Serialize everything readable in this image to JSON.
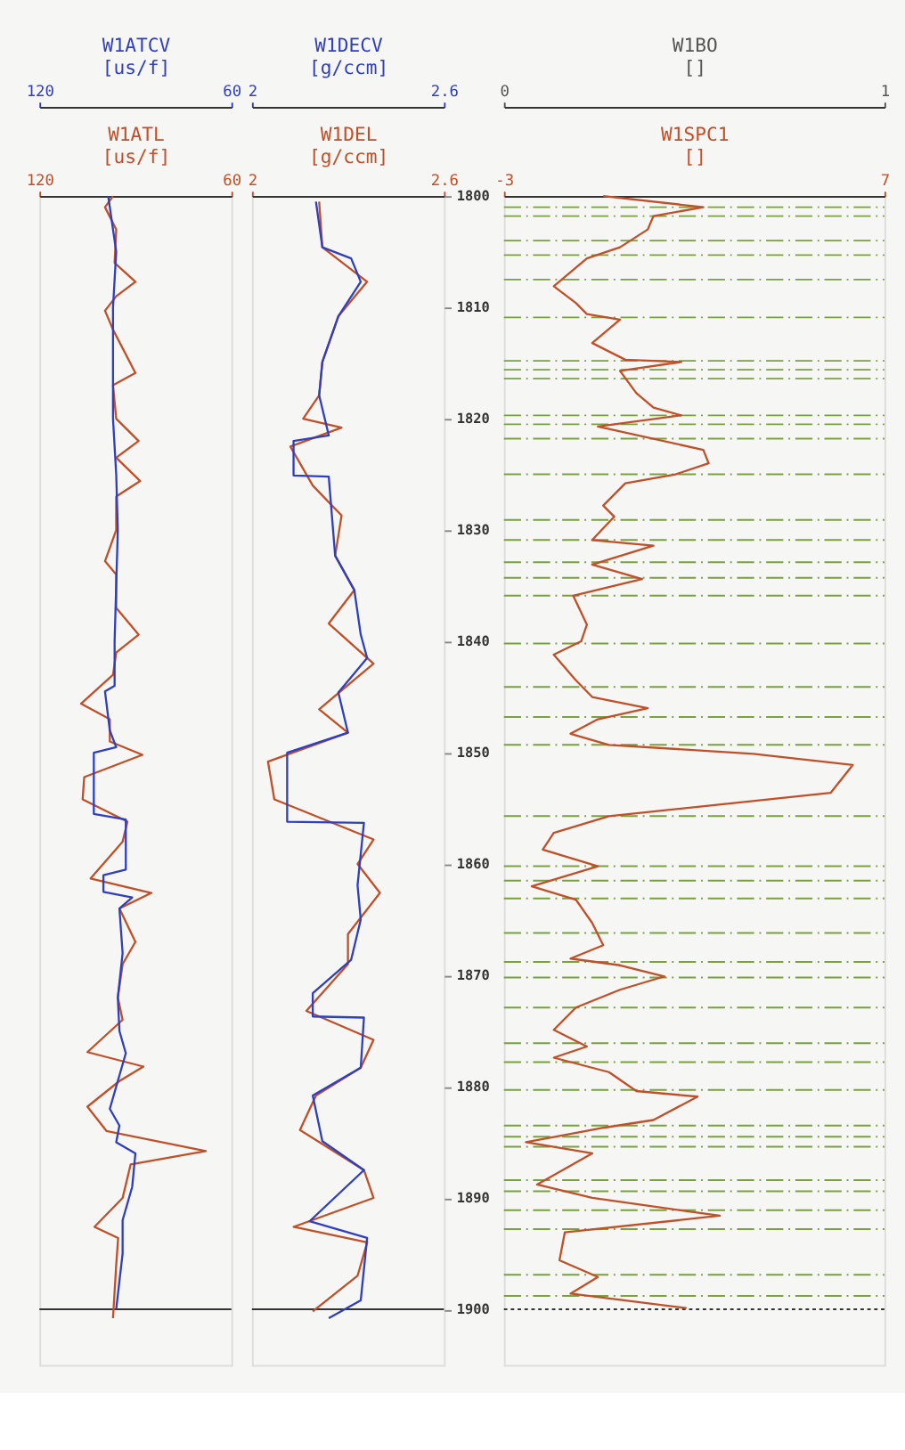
{
  "chart_data": [
    {
      "type": "line",
      "orientation": "horizontal",
      "xlim": [
        120,
        60
      ],
      "xticks": [
        120,
        60
      ],
      "xlabel": "W1ATL\n[us/f]",
      "x2lim": [
        120,
        60
      ],
      "x2ticks": [
        120,
        60
      ],
      "x2label": "W1ATCV\n[us/f]",
      "ylim": [
        1905,
        1800
      ],
      "tick_labels": "x",
      "grid": false,
      "ref_lines": [
        {
          "axis": "y",
          "value": 1900,
          "color": "#333333"
        }
      ],
      "series": [
        {
          "axis": "x2",
          "color": "#2f3fbf",
          "x": [
            1800,
            1805,
            1810,
            1815,
            1820,
            1825,
            1830,
            1835,
            1840,
            1844,
            1844.5,
            1848,
            1849.5,
            1850,
            1855.5,
            1856,
            1860.5,
            1861,
            1862.5,
            1863,
            1864,
            1868,
            1872,
            1875,
            1877,
            1880,
            1882,
            1883.5,
            1885,
            1886,
            1889,
            1892,
            1895,
            1900
          ],
          "values": [
            98.5,
            96,
            97,
            97,
            97,
            96,
            95.5,
            96,
            96.5,
            96.5,
            99.5,
            98,
            96,
            103,
            103,
            93,
            93,
            100,
            100,
            91,
            95,
            94,
            95.5,
            95,
            93,
            96,
            98,
            95,
            96,
            90,
            91,
            94,
            94,
            96
          ]
        },
        {
          "color": "#c0502a",
          "x": [
            1800,
            1801,
            1803,
            1806,
            1807.7,
            1809,
            1810.3,
            1812,
            1815.9,
            1817,
            1820,
            1822,
            1823.5,
            1825.6,
            1827,
            1830,
            1832.8,
            1834,
            1837,
            1839.4,
            1841,
            1843,
            1845.6,
            1847,
            1849,
            1850.2,
            1852.2,
            1854.2,
            1856.2,
            1858,
            1861.3,
            1862.6,
            1864,
            1867,
            1869,
            1872,
            1874,
            1876.9,
            1878.2,
            1879.5,
            1881.8,
            1884,
            1885.8,
            1887,
            1890,
            1892.6,
            1893.6,
            1896,
            1900.8
          ],
          "values": [
            97,
            99.5,
            96,
            96.5,
            90,
            96,
            99.5,
            97,
            90,
            97,
            96,
            89,
            96,
            88.5,
            96,
            96,
            99.5,
            96,
            96,
            89,
            96,
            97,
            107,
            98,
            98,
            87.8,
            106,
            106.5,
            92.5,
            94,
            104,
            85,
            95,
            90,
            94,
            95.5,
            94,
            105,
            87.5,
            95,
            105,
            99,
            68,
            91.5,
            94,
            102.8,
            95.4,
            96,
            97
          ]
        }
      ]
    },
    {
      "type": "line",
      "orientation": "horizontal",
      "xlim": [
        2,
        2.6
      ],
      "xticks": [
        2,
        2.6
      ],
      "xlabel": "W1DEL\n[g/ccm]",
      "x2lim": [
        2,
        2.6
      ],
      "x2ticks": [
        2,
        2.6
      ],
      "x2label": "W1DECV\n[g/ccm]",
      "ylim": [
        1905,
        1800
      ],
      "yticks": [
        1800,
        1810,
        1820,
        1830,
        1840,
        1850,
        1860,
        1870,
        1880,
        1890,
        1900
      ],
      "grid": false,
      "ref_lines": [
        {
          "axis": "y",
          "value": 1900,
          "color": "#333333"
        }
      ],
      "series": [
        {
          "axis": "x2",
          "color": "#2f3fbf",
          "x": [
            1800.5,
            1804.6,
            1805.6,
            1807.7,
            1810.8,
            1814.9,
            1817.9,
            1821.5,
            1822,
            1825.1,
            1825.2,
            1832.3,
            1835.4,
            1839.4,
            1841.5,
            1844.6,
            1848.2,
            1850,
            1856.2,
            1856.3,
            1861.9,
            1865,
            1868.6,
            1871.6,
            1873.7,
            1873.8,
            1878.3,
            1880.8,
            1884.9,
            1887.5,
            1892.1,
            1893.6,
            1899.2,
            1900.8
          ],
          "values": [
            2.2,
            2.22,
            2.31,
            2.34,
            2.27,
            2.22,
            2.21,
            2.24,
            2.13,
            2.13,
            2.24,
            2.26,
            2.32,
            2.34,
            2.36,
            2.27,
            2.3,
            2.11,
            2.11,
            2.35,
            2.33,
            2.34,
            2.31,
            2.19,
            2.19,
            2.35,
            2.34,
            2.19,
            2.22,
            2.35,
            2.18,
            2.36,
            2.34,
            2.24
          ]
        },
        {
          "color": "#c0502a",
          "x": [
            1800.5,
            1804.6,
            1807.7,
            1810.8,
            1814.9,
            1817.9,
            1820,
            1820.8,
            1822.5,
            1826,
            1828.7,
            1832.3,
            1835.4,
            1838.4,
            1842,
            1846.1,
            1848.2,
            1850.8,
            1854.2,
            1857.8,
            1860,
            1862.6,
            1866.3,
            1869,
            1873.2,
            1875.8,
            1878.3,
            1880.8,
            1883.9,
            1887.5,
            1890,
            1892.6,
            1894,
            1897,
            1900.2
          ],
          "values": [
            2.21,
            2.22,
            2.36,
            2.27,
            2.22,
            2.21,
            2.16,
            2.28,
            2.12,
            2.19,
            2.28,
            2.26,
            2.32,
            2.24,
            2.38,
            2.21,
            2.3,
            2.05,
            2.07,
            2.38,
            2.33,
            2.4,
            2.3,
            2.3,
            2.17,
            2.38,
            2.34,
            2.2,
            2.15,
            2.35,
            2.38,
            2.13,
            2.36,
            2.33,
            2.19
          ]
        }
      ]
    },
    {
      "type": "line",
      "orientation": "horizontal",
      "xlim": [
        -3,
        7
      ],
      "xticks": [
        -3,
        7
      ],
      "xlabel": "W1SPC1\n[]",
      "x2lim": [
        0,
        1
      ],
      "x2ticks": [
        0,
        1
      ],
      "x2label": "W1BO\n[]",
      "ylim": [
        1905,
        1800
      ],
      "tick_labels": "x",
      "grid": false,
      "ref_lines": [
        {
          "axis": "y",
          "value": 1900,
          "color": "#333333",
          "line_style": "dotted"
        },
        {
          "axis": "y",
          "value": 1801.0,
          "color": "#7aa040",
          "line_style": "dashed"
        },
        {
          "axis": "y",
          "value": 1801.8,
          "color": "#7aa040",
          "line_style": "dashed"
        },
        {
          "axis": "y",
          "value": 1804.0,
          "color": "#7aa040",
          "line_style": "dashed"
        },
        {
          "axis": "y",
          "value": 1805.3,
          "color": "#7aa040",
          "line_style": "dashed"
        },
        {
          "axis": "y",
          "value": 1807.5,
          "color": "#7aa040",
          "line_style": "dashed"
        },
        {
          "axis": "y",
          "value": 1810.9,
          "color": "#7aa040",
          "line_style": "dashed"
        },
        {
          "axis": "y",
          "value": 1814.8,
          "color": "#7aa040",
          "line_style": "dashed"
        },
        {
          "axis": "y",
          "value": 1815.6,
          "color": "#7aa040",
          "line_style": "dashed"
        },
        {
          "axis": "y",
          "value": 1816.4,
          "color": "#7aa040",
          "line_style": "dashed"
        },
        {
          "axis": "y",
          "value": 1819.7,
          "color": "#7aa040",
          "line_style": "dashed"
        },
        {
          "axis": "y",
          "value": 1820.5,
          "color": "#7aa040",
          "line_style": "dashed"
        },
        {
          "axis": "y",
          "value": 1821.8,
          "color": "#7aa040",
          "line_style": "dashed"
        },
        {
          "axis": "y",
          "value": 1825.0,
          "color": "#7aa040",
          "line_style": "dashed"
        },
        {
          "axis": "y",
          "value": 1829.1,
          "color": "#7aa040",
          "line_style": "dashed"
        },
        {
          "axis": "y",
          "value": 1830.9,
          "color": "#7aa040",
          "line_style": "dashed"
        },
        {
          "axis": "y",
          "value": 1832.9,
          "color": "#7aa040",
          "line_style": "dashed"
        },
        {
          "axis": "y",
          "value": 1834.3,
          "color": "#7aa040",
          "line_style": "dashed"
        },
        {
          "axis": "y",
          "value": 1835.9,
          "color": "#7aa040",
          "line_style": "dashed"
        },
        {
          "axis": "y",
          "value": 1840.2,
          "color": "#7aa040",
          "line_style": "dashed"
        },
        {
          "axis": "y",
          "value": 1844.1,
          "color": "#7aa040",
          "line_style": "dashed"
        },
        {
          "axis": "y",
          "value": 1846.8,
          "color": "#7aa040",
          "line_style": "dashed"
        },
        {
          "axis": "y",
          "value": 1849.3,
          "color": "#7aa040",
          "line_style": "dashed"
        },
        {
          "axis": "y",
          "value": 1855.7,
          "color": "#7aa040",
          "line_style": "dashed"
        },
        {
          "axis": "y",
          "value": 1860.2,
          "color": "#7aa040",
          "line_style": "dashed"
        },
        {
          "axis": "y",
          "value": 1861.5,
          "color": "#7aa040",
          "line_style": "dashed"
        },
        {
          "axis": "y",
          "value": 1863.1,
          "color": "#7aa040",
          "line_style": "dashed"
        },
        {
          "axis": "y",
          "value": 1866.2,
          "color": "#7aa040",
          "line_style": "dashed"
        },
        {
          "axis": "y",
          "value": 1868.8,
          "color": "#7aa040",
          "line_style": "dashed"
        },
        {
          "axis": "y",
          "value": 1870.2,
          "color": "#7aa040",
          "line_style": "dashed"
        },
        {
          "axis": "y",
          "value": 1872.9,
          "color": "#7aa040",
          "line_style": "dashed"
        },
        {
          "axis": "y",
          "value": 1876.1,
          "color": "#7aa040",
          "line_style": "dashed"
        },
        {
          "axis": "y",
          "value": 1877.8,
          "color": "#7aa040",
          "line_style": "dashed"
        },
        {
          "axis": "y",
          "value": 1880.3,
          "color": "#7aa040",
          "line_style": "dashed"
        },
        {
          "axis": "y",
          "value": 1883.5,
          "color": "#7aa040",
          "line_style": "dashed"
        },
        {
          "axis": "y",
          "value": 1884.5,
          "color": "#7aa040",
          "line_style": "dashed"
        },
        {
          "axis": "y",
          "value": 1885.4,
          "color": "#7aa040",
          "line_style": "dashed"
        },
        {
          "axis": "y",
          "value": 1888.4,
          "color": "#7aa040",
          "line_style": "dashed"
        },
        {
          "axis": "y",
          "value": 1889.4,
          "color": "#7aa040",
          "line_style": "dashed"
        },
        {
          "axis": "y",
          "value": 1891.1,
          "color": "#7aa040",
          "line_style": "dashed"
        },
        {
          "axis": "y",
          "value": 1892.8,
          "color": "#7aa040",
          "line_style": "dashed"
        },
        {
          "axis": "y",
          "value": 1896.9,
          "color": "#7aa040",
          "line_style": "dashed"
        },
        {
          "axis": "y",
          "value": 1898.8,
          "color": "#7aa040",
          "line_style": "dashed"
        }
      ],
      "series": [
        {
          "color": "#c0502a",
          "x": [
            1800,
            1801.0,
            1801.8,
            1803.0,
            1804.6,
            1805.6,
            1808.1,
            1809.6,
            1810.6,
            1811.1,
            1813.2,
            1814.7,
            1814.9,
            1815.7,
            1817.7,
            1819.0,
            1819.7,
            1820.7,
            1822.8,
            1824.0,
            1825.0,
            1825.8,
            1827.8,
            1828.8,
            1830.9,
            1831.4,
            1833.1,
            1834.4,
            1835.9,
            1838.5,
            1840.0,
            1841.2,
            1843.5,
            1845.0,
            1846.0,
            1847.0,
            1848.3,
            1849.3,
            1850.1,
            1851.1,
            1853.6,
            1854.6,
            1855.7,
            1857.2,
            1858.7,
            1860.2,
            1862.0,
            1863.2,
            1865.3,
            1867.3,
            1868.5,
            1869.1,
            1870.1,
            1871.3,
            1872.9,
            1874.9,
            1876.4,
            1877.4,
            1878.7,
            1880.4,
            1880.9,
            1883.0,
            1883.7,
            1885.0,
            1886.0,
            1888.8,
            1890.0,
            1891.6,
            1893.1,
            1895.6,
            1897.1,
            1898.6,
            1899.9
          ],
          "values": [
            -0.39,
            2.24,
            0.93,
            0.78,
            0.05,
            -0.82,
            -1.69,
            -1.11,
            -0.82,
            0.05,
            -0.68,
            0.19,
            1.66,
            0.05,
            0.48,
            0.93,
            1.66,
            -0.53,
            2.24,
            2.38,
            1.51,
            0.19,
            -0.39,
            -0.1,
            -0.68,
            0.93,
            -0.68,
            0.63,
            -1.18,
            -0.82,
            -0.97,
            -1.69,
            -1.11,
            -0.68,
            0.78,
            -0.53,
            -1.25,
            -0.24,
            3.55,
            6.17,
            5.59,
            2.82,
            -0.24,
            -1.69,
            -1.98,
            -0.53,
            -2.27,
            -1.11,
            -0.68,
            -0.39,
            -1.25,
            0.05,
            1.22,
            0.05,
            -1.11,
            -1.69,
            -0.82,
            -1.69,
            -0.24,
            0.48,
            2.09,
            0.93,
            -0.39,
            -2.42,
            -0.68,
            -2.13,
            -0.68,
            2.67,
            -1.4,
            -1.54,
            -0.53,
            -1.25,
            1.8
          ]
        }
      ]
    }
  ]
}
